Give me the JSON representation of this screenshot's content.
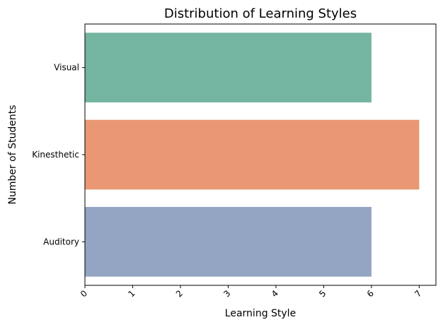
{
  "chart_data": {
    "type": "bar",
    "orientation": "horizontal",
    "title": "Distribution of Learning Styles",
    "xlabel": "Learning Style",
    "ylabel": "Number of Students",
    "categories": [
      "Visual",
      "Kinesthetic",
      "Auditory"
    ],
    "values": [
      6,
      7,
      6
    ],
    "colors": [
      "#73b5a1",
      "#e99873",
      "#94a4c3"
    ],
    "xlim": [
      0,
      7.35
    ],
    "xticks": [
      "0",
      "1",
      "2",
      "3",
      "4",
      "5",
      "6",
      "7"
    ],
    "xtick_rotation": "45",
    "grid": false,
    "legend": "none"
  }
}
